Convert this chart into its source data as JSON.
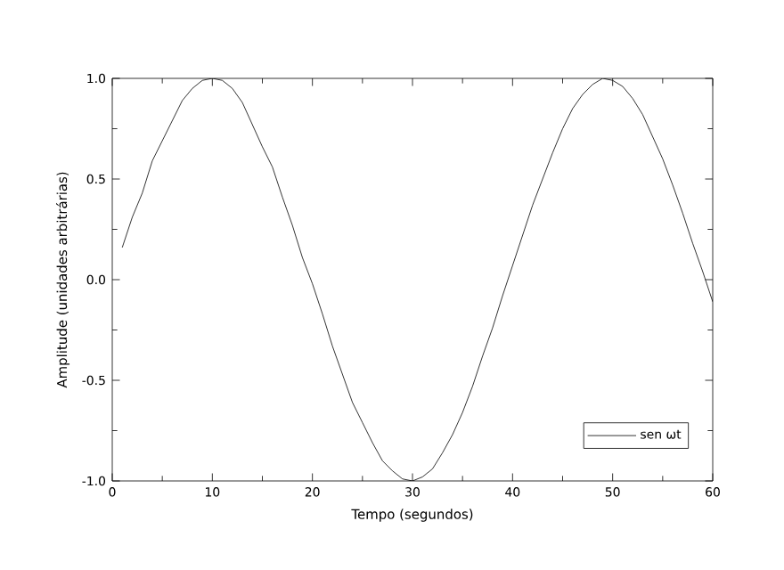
{
  "chart_data": {
    "type": "line",
    "xlabel": "Tempo (segundos)",
    "ylabel": "Amplitude (unidades arbitrárias)",
    "xlim": [
      0,
      60
    ],
    "xticks": [
      0,
      10,
      20,
      30,
      40,
      50,
      60
    ],
    "ylim": [
      -1,
      1
    ],
    "yticks": [
      {
        "value": -1,
        "label": "-1.0"
      },
      {
        "value": -0.5,
        "label": "-0.5"
      },
      {
        "value": 0,
        "label": "0.0"
      },
      {
        "value": 0.5,
        "label": "0.5"
      },
      {
        "value": 1,
        "label": "1.0"
      }
    ],
    "grid": false,
    "legend": "bottom right",
    "marker": "none",
    "line_style": "solid",
    "x": [
      1,
      2,
      3,
      4,
      5,
      6,
      7,
      8,
      9,
      10,
      11,
      12,
      13,
      14,
      15,
      16,
      17,
      18,
      19,
      20,
      21,
      22,
      23,
      24,
      25,
      26,
      27,
      28,
      29,
      30,
      31,
      32,
      33,
      34,
      35,
      36,
      37,
      38,
      39,
      40,
      41,
      42,
      43,
      44,
      45,
      46,
      47,
      48,
      49,
      50,
      51,
      52,
      53,
      54,
      55,
      56,
      57,
      58,
      59,
      60
    ],
    "series": [
      {
        "name": "sen ωt",
        "color": "#000000",
        "values": [
          0.16,
          0.31,
          0.43,
          0.59,
          0.69,
          0.79,
          0.89,
          0.95,
          0.99,
          1.0,
          0.99,
          0.95,
          0.88,
          0.77,
          0.66,
          0.56,
          0.41,
          0.27,
          0.11,
          -0.02,
          -0.17,
          -0.33,
          -0.47,
          -0.61,
          -0.71,
          -0.81,
          -0.9,
          -0.95,
          -0.99,
          -1.0,
          -0.98,
          -0.94,
          -0.86,
          -0.77,
          -0.66,
          -0.53,
          -0.38,
          -0.24,
          -0.08,
          0.07,
          0.22,
          0.37,
          0.5,
          0.63,
          0.75,
          0.85,
          0.92,
          0.97,
          1.0,
          0.99,
          0.96,
          0.9,
          0.82,
          0.71,
          0.6,
          0.47,
          0.33,
          0.18,
          0.04,
          -0.11
        ]
      }
    ]
  }
}
